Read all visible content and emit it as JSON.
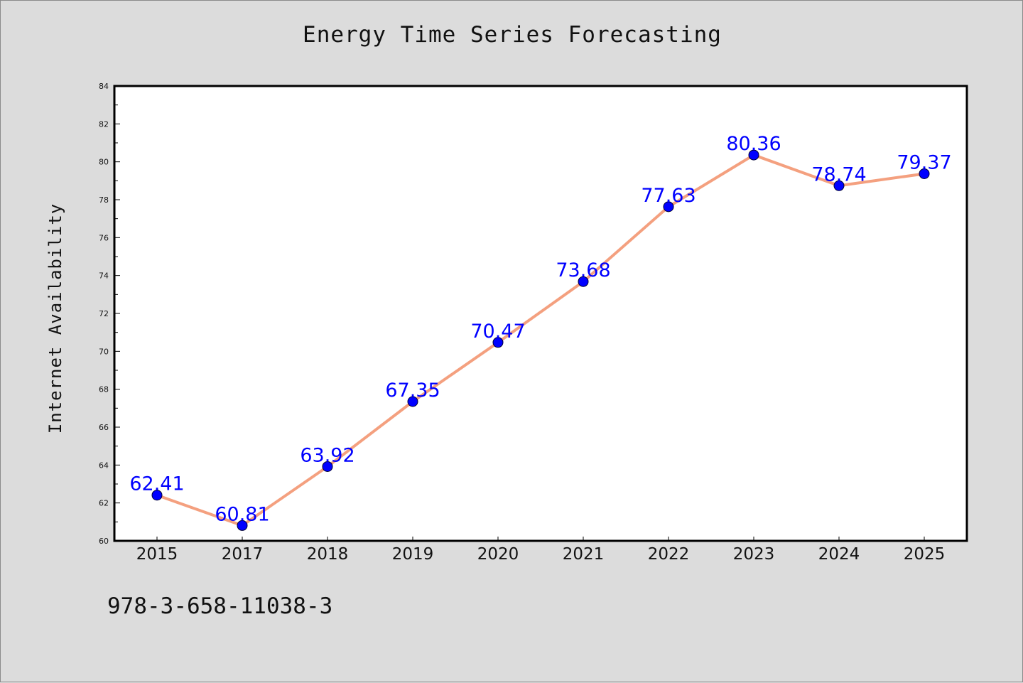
{
  "chart_data": {
    "type": "line",
    "title": "Energy Time Series Forecasting",
    "xlabel": "",
    "ylabel": "Internet Availability",
    "categories": [
      "2015",
      "2017",
      "2018",
      "2019",
      "2020",
      "2021",
      "2022",
      "2023",
      "2024",
      "2025"
    ],
    "series": [
      {
        "values": [
          62.41,
          60.81,
          63.92,
          67.35,
          70.47,
          73.68,
          77.63,
          80.36,
          78.74,
          79.37
        ],
        "labels": [
          "62.41",
          "60.81",
          "63.92",
          "67.35",
          "70.47",
          "73.68",
          "77.63",
          "80.36",
          "78.74",
          "79.37"
        ],
        "line_color": "#f4a07f",
        "marker_color": "#0000ff"
      }
    ],
    "ylim": [
      60,
      84
    ],
    "yticks": [
      "60",
      "62",
      "64",
      "66",
      "68",
      "70",
      "72",
      "74",
      "76",
      "78",
      "80",
      "82",
      "84"
    ],
    "grid": false,
    "background": "#dcdcdc",
    "plot_background": "#ffffff"
  },
  "footer_text": "978-3-658-11038-3"
}
